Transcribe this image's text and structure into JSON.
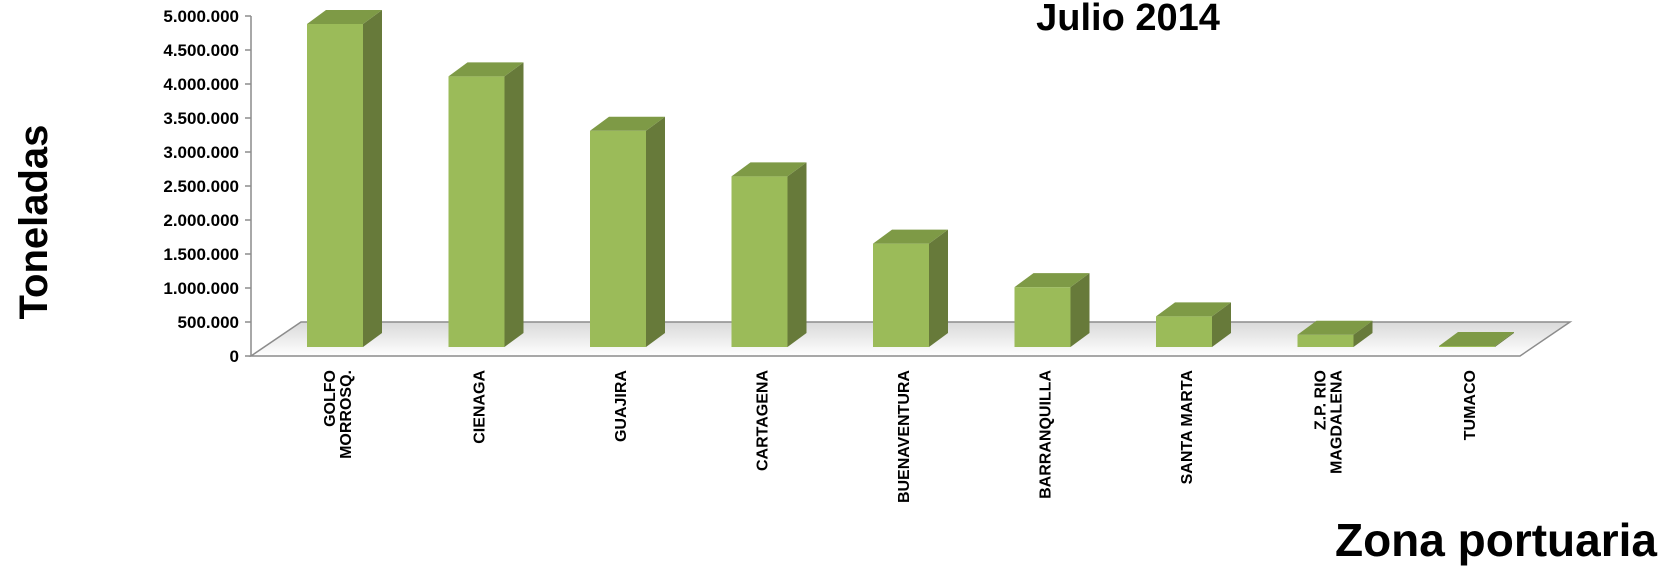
{
  "chart_data": {
    "type": "bar",
    "title": "Julio 2014",
    "xlabel": "Zona portuaria",
    "ylabel": "Toneladas",
    "categories": [
      "GOLFO MORROSQ.",
      "CIENAGA",
      "GUAJIRA",
      "CARTAGENA",
      "BUENAVENTURA",
      "BARRANQUILLA",
      "SANTA MARTA",
      "Z.P. RIO MAGDALENA",
      "TUMACO"
    ],
    "category_lines": [
      [
        "GOLFO",
        "MORROSQ."
      ],
      [
        "CIENAGA"
      ],
      [
        "GUAJIRA"
      ],
      [
        "CARTAGENA"
      ],
      [
        "BUENAVENTURA"
      ],
      [
        "BARRANQUILLA"
      ],
      [
        "SANTA MARTA"
      ],
      [
        "Z.P. RIO",
        "MAGDALENA"
      ],
      [
        "TUMACO"
      ]
    ],
    "values": [
      4750000,
      3980000,
      3180000,
      2510000,
      1520000,
      880000,
      450000,
      180000,
      15000
    ],
    "ylim": [
      0,
      5000000
    ],
    "yticks": [
      0,
      500000,
      1000000,
      1500000,
      2000000,
      2500000,
      3000000,
      3500000,
      4000000,
      4500000,
      5000000
    ],
    "ytick_labels": [
      "0",
      "500.000",
      "1.000.000",
      "1.500.000",
      "2.000.000",
      "2.500.000",
      "3.000.000",
      "3.500.000",
      "4.000.000",
      "4.500.000",
      "5.000.000"
    ],
    "grid": false,
    "legend": "none",
    "colors": {
      "bar_front": "#9bbb59",
      "bar_side": "#677a3a",
      "bar_top": "#7e9a46",
      "floor_stroke": "#8c8c8c"
    }
  }
}
